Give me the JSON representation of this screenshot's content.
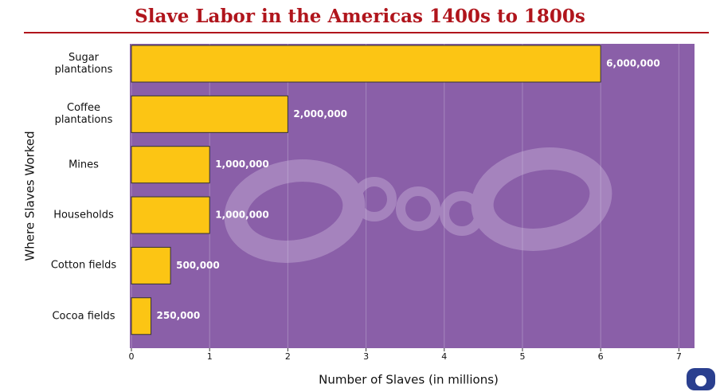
{
  "chart_data": {
    "type": "hbar",
    "title": "Slave Labor in the Americas 1400s to 1800s",
    "xlabel": "Number of Slaves (in millions)",
    "ylabel": "Where Slaves Worked",
    "categories": [
      "Sugar plantations",
      "Coffee plantations",
      "Mines",
      "Households",
      "Cotton fields",
      "Cocoa fields"
    ],
    "values": [
      6,
      2,
      1,
      1,
      0.5,
      0.25
    ],
    "value_labels": [
      "6,000,000",
      "2,000,000",
      "1,000,000",
      "1,000,000",
      "500,000",
      "250,000"
    ],
    "color": "#fcc514",
    "background": "#8a5fa8",
    "grid": true,
    "xlim": [
      0,
      7.2
    ],
    "xticks": [
      0,
      1,
      2,
      3,
      4,
      5,
      6,
      7
    ]
  }
}
